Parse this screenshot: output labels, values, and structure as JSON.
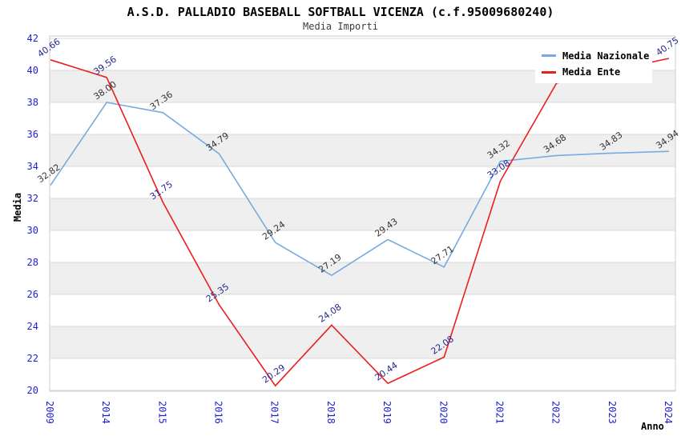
{
  "header": {
    "title": "A.S.D. PALLADIO BASEBALL SOFTBALL VICENZA (c.f.95009680240)",
    "subtitle": "Media Importi"
  },
  "chart_data": {
    "type": "line",
    "title": "A.S.D. PALLADIO BASEBALL SOFTBALL VICENZA (c.f.95009680240)",
    "subtitle": "Media Importi",
    "xlabel": "Anno",
    "ylabel": "Media",
    "categories": [
      "2009",
      "2014",
      "2015",
      "2016",
      "2017",
      "2018",
      "2019",
      "2020",
      "2021",
      "2022",
      "2023",
      "2024"
    ],
    "ylim": [
      20,
      42
    ],
    "ytick_step": 2,
    "grid": "horizontal gridlines with alternating gray bands every 2 units",
    "legend_position": "top-right",
    "series": [
      {
        "name": "Media Nazionale",
        "color": "#78aae1",
        "label_color": "#333333",
        "values": [
          32.82,
          38.0,
          37.36,
          34.79,
          29.24,
          27.19,
          29.43,
          27.71,
          34.32,
          34.68,
          34.83,
          34.94
        ],
        "labels": [
          "32.82",
          "38.00",
          "37.36",
          "34.79",
          "29.24",
          "27.19",
          "29.43",
          "27.71",
          "34.32",
          "34.68",
          "34.83",
          "34.94"
        ]
      },
      {
        "name": "Media Ente",
        "color": "#eb1e1e",
        "label_color": "#28288c",
        "values": [
          40.66,
          39.56,
          31.75,
          25.35,
          20.29,
          24.08,
          20.44,
          22.08,
          33.08,
          39.2,
          40.0,
          40.75
        ],
        "labels": [
          "40.66",
          "39.56",
          "31.75",
          "25.35",
          "20.29",
          "24.08",
          "20.44",
          "22.08",
          "33.08",
          null,
          null,
          "40.75"
        ],
        "values_hidden_by_legend": [
          "2022",
          "2023"
        ]
      }
    ]
  },
  "colors": {
    "tick_label": "#1f1fd0",
    "band_fill": "#efefef",
    "gridline": "#d9d9d9",
    "plot_border": "#cccccc",
    "background": "#ffffff"
  }
}
